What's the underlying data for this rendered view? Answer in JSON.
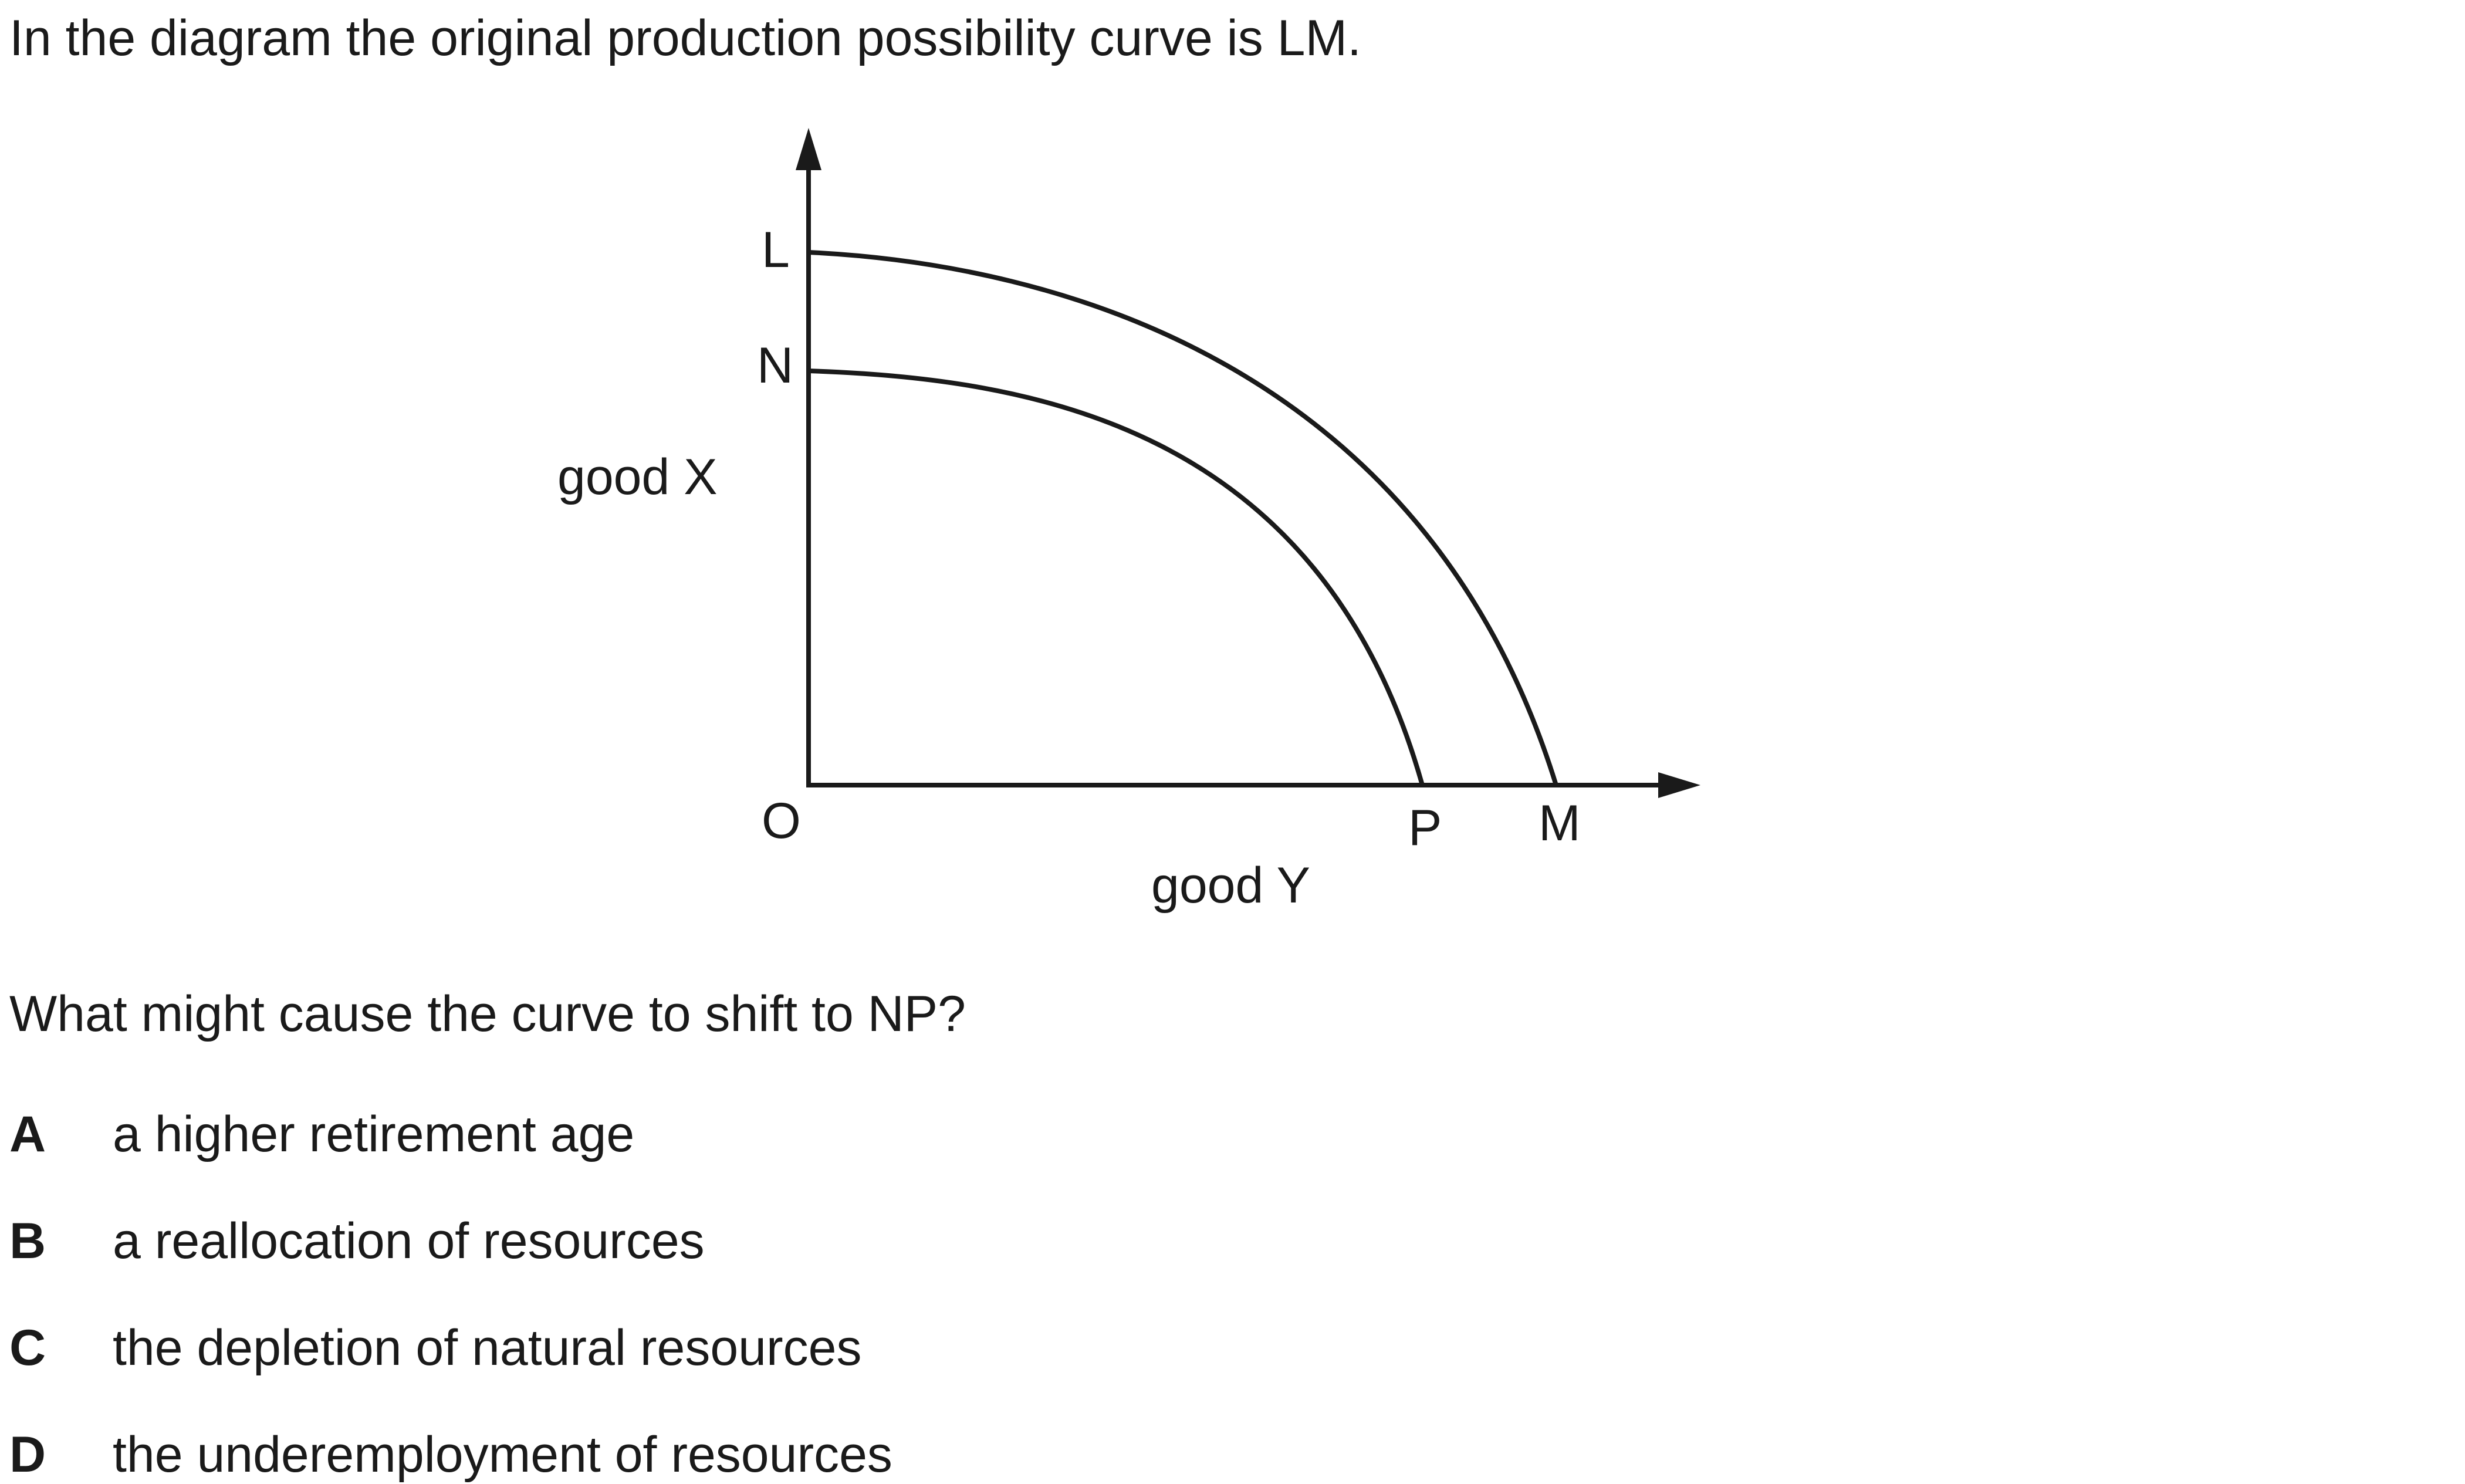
{
  "intro": "In the diagram the original production possibility curve is LM.",
  "diagram": {
    "y_axis_label": "good X",
    "x_axis_label": "good Y",
    "origin_label": "O",
    "points": {
      "L": "L",
      "N": "N",
      "P": "P",
      "M": "M"
    },
    "curves": [
      {
        "name": "LM",
        "from": "L",
        "to": "M",
        "role": "original"
      },
      {
        "name": "NP",
        "from": "N",
        "to": "P",
        "role": "shifted"
      }
    ]
  },
  "question": "What might cause the curve to shift to NP?",
  "options": [
    {
      "letter": "A",
      "text": "a higher retirement age"
    },
    {
      "letter": "B",
      "text": "a reallocation of resources"
    },
    {
      "letter": "C",
      "text": "the depletion of natural resources"
    },
    {
      "letter": "D",
      "text": "the underemployment of resources"
    }
  ]
}
